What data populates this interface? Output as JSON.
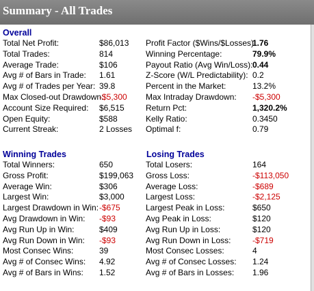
{
  "window": {
    "title": "Summary - All Trades"
  },
  "overall": {
    "heading": "Overall",
    "left": [
      {
        "label": "Total Net Profit:",
        "value": "$86,013",
        "neg": false,
        "bold": false
      },
      {
        "label": "Total Trades:",
        "value": "814",
        "neg": false,
        "bold": false
      },
      {
        "label": "Average Trade:",
        "value": "$106",
        "neg": false,
        "bold": false
      },
      {
        "label": "Avg # of Bars in Trade:",
        "value": "1.61",
        "neg": false,
        "bold": false
      },
      {
        "label": "Avg # of Trades per Year:",
        "value": "39.8",
        "neg": false,
        "bold": false
      },
      {
        "label": "Max Closed-out Drawdown:",
        "value": "-$5,300",
        "neg": true,
        "bold": false
      },
      {
        "label": "Account Size Required:",
        "value": "$6,515",
        "neg": false,
        "bold": false
      },
      {
        "label": "Open Equity:",
        "value": "$588",
        "neg": false,
        "bold": false
      },
      {
        "label": "Current Streak:",
        "value": "2 Losses",
        "neg": false,
        "bold": false
      }
    ],
    "right": [
      {
        "label": "Profit Factor ($Wins/$Losses):",
        "value": "1.76",
        "neg": false,
        "bold": true
      },
      {
        "label": "Winning Percentage:",
        "value": "79.9%",
        "neg": false,
        "bold": true
      },
      {
        "label": "Payout Ratio (Avg Win/Loss):",
        "value": "0.44",
        "neg": false,
        "bold": true
      },
      {
        "label": "Z-Score (W/L Predictability):",
        "value": "0.2",
        "neg": false,
        "bold": false
      },
      {
        "label": "Percent in the Market:",
        "value": "13.2%",
        "neg": false,
        "bold": false
      },
      {
        "label": "Max Intraday Drawdown:",
        "value": "-$5,300",
        "neg": true,
        "bold": false
      },
      {
        "label": "Return Pct:",
        "value": "1,320.2%",
        "neg": false,
        "bold": true
      },
      {
        "label": "Kelly Ratio:",
        "value": "0.3450",
        "neg": false,
        "bold": false
      },
      {
        "label": "Optimal f:",
        "value": "0.79",
        "neg": false,
        "bold": false
      }
    ]
  },
  "winning": {
    "heading": "Winning Trades",
    "rows": [
      {
        "label": "Total Winners:",
        "value": "650",
        "neg": false,
        "bold": false
      },
      {
        "label": "Gross Profit:",
        "value": "$199,063",
        "neg": false,
        "bold": false
      },
      {
        "label": "Average Win:",
        "value": "$306",
        "neg": false,
        "bold": false
      },
      {
        "label": "Largest Win:",
        "value": "$3,000",
        "neg": false,
        "bold": false
      },
      {
        "label": "Largest Drawdown in Win:",
        "value": "-$675",
        "neg": true,
        "bold": false
      },
      {
        "label": "Avg Drawdown in Win:",
        "value": "-$93",
        "neg": true,
        "bold": false
      },
      {
        "label": "Avg Run Up in Win:",
        "value": "$409",
        "neg": false,
        "bold": false
      },
      {
        "label": "Avg Run Down in Win:",
        "value": "-$93",
        "neg": true,
        "bold": false
      },
      {
        "label": "Most Consec Wins:",
        "value": "39",
        "neg": false,
        "bold": false
      },
      {
        "label": "Avg # of Consec Wins:",
        "value": "4.92",
        "neg": false,
        "bold": false
      },
      {
        "label": "Avg # of Bars in Wins:",
        "value": "1.52",
        "neg": false,
        "bold": false
      }
    ]
  },
  "losing": {
    "heading": "Losing Trades",
    "rows": [
      {
        "label": "Total Losers:",
        "value": "164",
        "neg": false,
        "bold": false
      },
      {
        "label": "Gross Loss:",
        "value": "-$113,050",
        "neg": true,
        "bold": false
      },
      {
        "label": "Average Loss:",
        "value": "-$689",
        "neg": true,
        "bold": false
      },
      {
        "label": "Largest Loss:",
        "value": "-$2,125",
        "neg": true,
        "bold": false
      },
      {
        "label": "Largest Peak in Loss:",
        "value": "$650",
        "neg": false,
        "bold": false
      },
      {
        "label": "Avg Peak in Loss:",
        "value": "$120",
        "neg": false,
        "bold": false
      },
      {
        "label": "Avg Run Up in Loss:",
        "value": "$120",
        "neg": false,
        "bold": false
      },
      {
        "label": "Avg Run Down in Loss:",
        "value": "-$719",
        "neg": true,
        "bold": false
      },
      {
        "label": "Most Consec Losses:",
        "value": "4",
        "neg": false,
        "bold": false
      },
      {
        "label": "Avg # of Consec Losses:",
        "value": "1.24",
        "neg": false,
        "bold": false
      },
      {
        "label": "Avg # of Bars in Losses:",
        "value": "1.96",
        "neg": false,
        "bold": false
      }
    ]
  }
}
